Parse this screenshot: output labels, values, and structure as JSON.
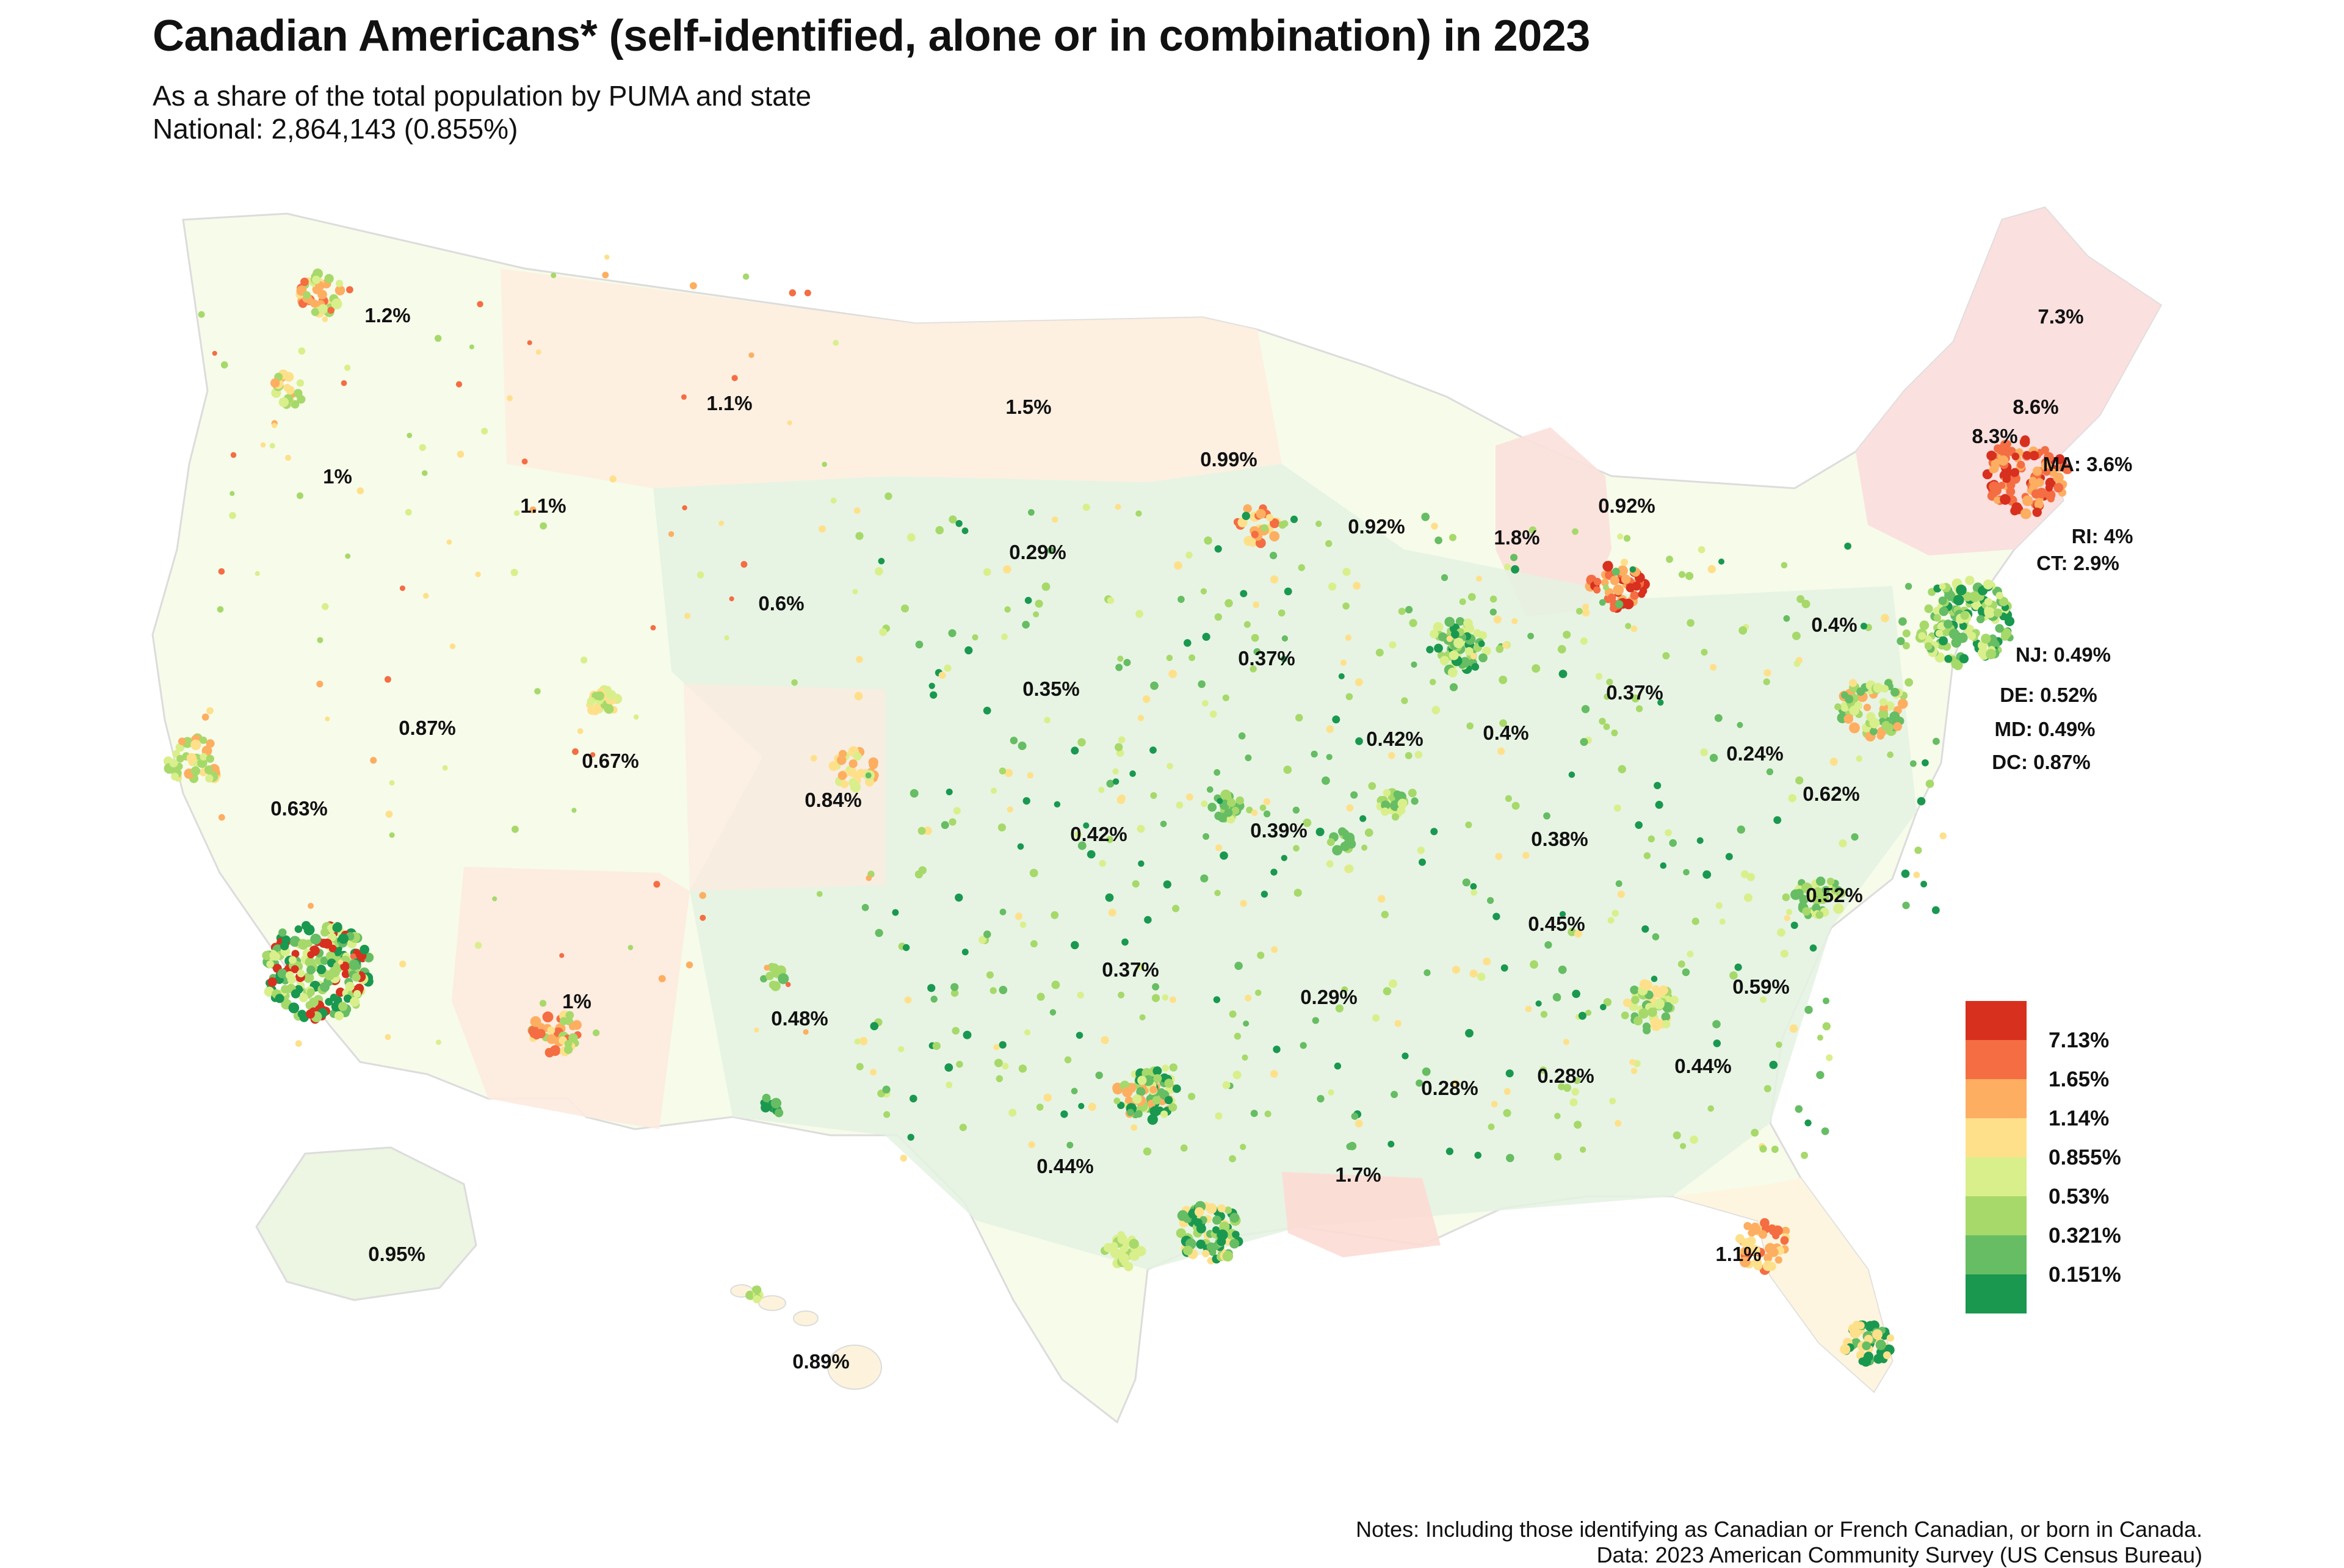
{
  "title": "Canadian Americans* (self-identified, alone or in combination) in 2023",
  "subtitle_line1": "As a share of the total population by PUMA and state",
  "subtitle_line2": "National: 2,864,143 (0.855%)",
  "notes_line1": "Notes: Including those identifying as Canadian or French Canadian, or born in Canada.",
  "notes_line2": "Data: 2023 American Community Survey (US Census Bureau)",
  "legend": {
    "colors": [
      "#d7301f",
      "#f46d43",
      "#fdae61",
      "#fee08b",
      "#d9ef8b",
      "#a6d96a",
      "#66bd63",
      "#1a9850"
    ],
    "labels": [
      "7.13%",
      "1.65%",
      "1.14%",
      "0.855%",
      "0.53%",
      "0.321%",
      "0.151%"
    ]
  },
  "states": [
    {
      "name": "WA",
      "label": "1.2%",
      "value": 1.2
    },
    {
      "name": "OR",
      "label": "1%",
      "value": 1.0
    },
    {
      "name": "ID",
      "label": "1.1%",
      "value": 1.1
    },
    {
      "name": "MT",
      "label": "1.1%",
      "value": 1.1
    },
    {
      "name": "ND",
      "label": "1.5%",
      "value": 1.5
    },
    {
      "name": "MN",
      "label": "0.99%",
      "value": 0.99
    },
    {
      "name": "WI",
      "label": "0.92%",
      "value": 0.92
    },
    {
      "name": "MI",
      "label": "1.8%",
      "value": 1.8
    },
    {
      "name": "NY",
      "label": "0.92%",
      "value": 0.92
    },
    {
      "name": "ME",
      "label": "7.3%",
      "value": 7.3
    },
    {
      "name": "NH",
      "label": "8.6%",
      "value": 8.6
    },
    {
      "name": "VT",
      "label": "8.3%",
      "value": 8.3
    },
    {
      "name": "MA",
      "label": "MA: 3.6%",
      "value": 3.6
    },
    {
      "name": "RI",
      "label": "RI: 4%",
      "value": 4.0
    },
    {
      "name": "CT",
      "label": "CT: 2.9%",
      "value": 2.9
    },
    {
      "name": "NJ",
      "label": "NJ: 0.49%",
      "value": 0.49
    },
    {
      "name": "DE",
      "label": "DE: 0.52%",
      "value": 0.52
    },
    {
      "name": "MD",
      "label": "MD: 0.49%",
      "value": 0.49
    },
    {
      "name": "DC",
      "label": "DC: 0.87%",
      "value": 0.87
    },
    {
      "name": "PA",
      "label": "0.4%",
      "value": 0.4
    },
    {
      "name": "SD",
      "label": "0.29%",
      "value": 0.29
    },
    {
      "name": "WY",
      "label": "0.6%",
      "value": 0.6
    },
    {
      "name": "NE",
      "label": "0.35%",
      "value": 0.35
    },
    {
      "name": "IA",
      "label": "0.37%",
      "value": 0.37
    },
    {
      "name": "IL",
      "label": "0.42%",
      "value": 0.42
    },
    {
      "name": "IN",
      "label": "0.4%",
      "value": 0.4
    },
    {
      "name": "OH",
      "label": "0.37%",
      "value": 0.37
    },
    {
      "name": "WV",
      "label": "0.24%",
      "value": 0.24
    },
    {
      "name": "VA",
      "label": "0.62%",
      "value": 0.62
    },
    {
      "name": "NV",
      "label": "0.87%",
      "value": 0.87
    },
    {
      "name": "UT",
      "label": "0.67%",
      "value": 0.67
    },
    {
      "name": "CO",
      "label": "0.84%",
      "value": 0.84
    },
    {
      "name": "CA",
      "label": "0.63%",
      "value": 0.63
    },
    {
      "name": "KS",
      "label": "0.42%",
      "value": 0.42
    },
    {
      "name": "MO",
      "label": "0.39%",
      "value": 0.39
    },
    {
      "name": "KY",
      "label": "0.38%",
      "value": 0.38
    },
    {
      "name": "TN",
      "label": "0.45%",
      "value": 0.45
    },
    {
      "name": "NC",
      "label": "0.52%",
      "value": 0.52
    },
    {
      "name": "SC",
      "label": "0.59%",
      "value": 0.59
    },
    {
      "name": "AZ",
      "label": "1%",
      "value": 1.0
    },
    {
      "name": "NM",
      "label": "0.48%",
      "value": 0.48
    },
    {
      "name": "OK",
      "label": "0.37%",
      "value": 0.37
    },
    {
      "name": "AR",
      "label": "0.29%",
      "value": 0.29
    },
    {
      "name": "MS",
      "label": "0.28%",
      "value": 0.28
    },
    {
      "name": "AL",
      "label": "0.28%",
      "value": 0.28
    },
    {
      "name": "GA",
      "label": "0.44%",
      "value": 0.44
    },
    {
      "name": "TX",
      "label": "0.44%",
      "value": 0.44
    },
    {
      "name": "LA",
      "label": "1.7%",
      "value": 1.7
    },
    {
      "name": "FL",
      "label": "1.1%",
      "value": 1.1
    },
    {
      "name": "AK",
      "label": "0.95%",
      "value": 0.95
    },
    {
      "name": "HI",
      "label": "0.89%",
      "value": 0.89
    }
  ]
}
